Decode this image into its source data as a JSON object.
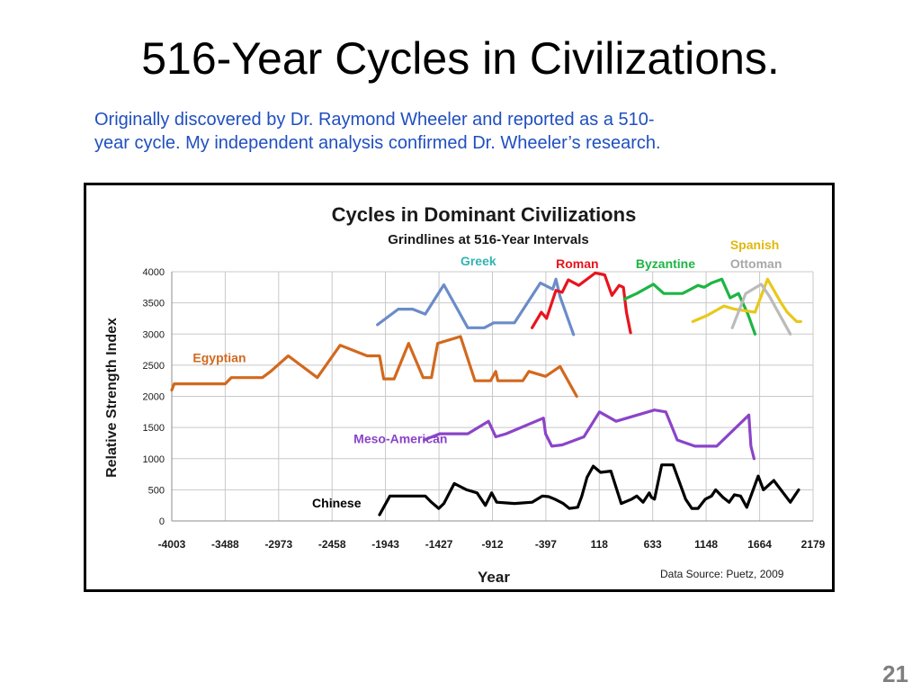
{
  "slide": {
    "title": "516-Year Cycles in Civilizations.",
    "subtitle_lines": [
      "Originally discovered by Dr. Raymond Wheeler and reported as a 510-",
      "year cycle.  My independent analysis confirmed Dr. Wheeler’s research."
    ],
    "page_number": "21"
  },
  "chart_data": {
    "type": "line",
    "title": "Cycles in Dominant Civilizations",
    "subtitle": "Grindlines at 516-Year Intervals",
    "xlabel": "Year",
    "ylabel": "Relative Strength Index",
    "source_note": "Data Source:  Puetz, 2009",
    "xlim": [
      -4003,
      2179
    ],
    "ylim": [
      0,
      4000
    ],
    "x_ticks": [
      -4003,
      -3488,
      -2973,
      -2458,
      -1943,
      -1427,
      -912,
      -397,
      118,
      633,
      1148,
      1664,
      2179
    ],
    "y_ticks": [
      0,
      500,
      1000,
      1500,
      2000,
      2500,
      3000,
      3500,
      4000
    ],
    "grid": true,
    "series": [
      {
        "name": "Egyptian",
        "color": "#d2691e",
        "x": [
          -4003,
          -3980,
          -3870,
          -3650,
          -3488,
          -3430,
          -3230,
          -3130,
          -3050,
          -2880,
          -2600,
          -2380,
          -2120,
          -2000,
          -1960,
          -1920,
          -1860,
          -1720,
          -1580,
          -1500,
          -1440,
          -1220,
          -1080,
          -930,
          -880,
          -860,
          -620,
          -560,
          -400,
          -260,
          -100
        ],
        "y": [
          2100,
          2200,
          2200,
          2200,
          2200,
          2300,
          2300,
          2300,
          2400,
          2650,
          2300,
          2820,
          2650,
          2650,
          2280,
          2280,
          2280,
          2850,
          2300,
          2300,
          2850,
          2960,
          2250,
          2250,
          2400,
          2250,
          2250,
          2400,
          2320,
          2480,
          2000
        ]
      },
      {
        "name": "Greek",
        "color": "#6b8cc8",
        "x": [
          -2020,
          -1820,
          -1680,
          -1560,
          -1380,
          -1150,
          -990,
          -900,
          -700,
          -450,
          -330,
          -300,
          -260,
          -130
        ],
        "y": [
          3150,
          3400,
          3400,
          3320,
          3790,
          3100,
          3100,
          3180,
          3180,
          3820,
          3720,
          3880,
          3600,
          2990
        ]
      },
      {
        "name": "Roman",
        "color": "#e8141d",
        "x": [
          -530,
          -440,
          -390,
          -300,
          -240,
          -180,
          -80,
          80,
          170,
          240,
          310,
          350,
          380,
          420
        ],
        "y": [
          3100,
          3350,
          3250,
          3700,
          3670,
          3870,
          3780,
          3980,
          3950,
          3620,
          3780,
          3750,
          3350,
          3020
        ]
      },
      {
        "name": "Byzantine",
        "color": "#1db544",
        "x": [
          360,
          480,
          640,
          740,
          920,
          1070,
          1130,
          1200,
          1300,
          1380,
          1460,
          1550,
          1620
        ],
        "y": [
          3560,
          3650,
          3800,
          3650,
          3650,
          3780,
          3750,
          3820,
          3880,
          3580,
          3650,
          3320,
          3000
        ]
      },
      {
        "name": "Spanish",
        "color": "#e8c81d",
        "x": [
          1020,
          1160,
          1320,
          1420,
          1620,
          1740,
          1870,
          1930,
          2020,
          2060
        ],
        "y": [
          3200,
          3300,
          3450,
          3400,
          3350,
          3880,
          3500,
          3350,
          3200,
          3200
        ]
      },
      {
        "name": "Ottoman",
        "color": "#bbbbbb",
        "x": [
          1400,
          1530,
          1680,
          1760,
          1860,
          1960
        ],
        "y": [
          3100,
          3650,
          3800,
          3600,
          3300,
          3000
        ]
      },
      {
        "name": "Meso-American",
        "color": "#8b44c8",
        "x": [
          -1570,
          -1420,
          -1150,
          -950,
          -880,
          -780,
          -420,
          -400,
          -340,
          -240,
          -30,
          120,
          280,
          650,
          760,
          870,
          1040,
          1250,
          1560,
          1580,
          1610
        ],
        "y": [
          1300,
          1400,
          1400,
          1600,
          1350,
          1400,
          1650,
          1400,
          1200,
          1220,
          1350,
          1750,
          1600,
          1780,
          1750,
          1300,
          1200,
          1200,
          1700,
          1200,
          1000
        ]
      },
      {
        "name": "Chinese",
        "color": "#000000",
        "x": [
          -2000,
          -1900,
          -1760,
          -1560,
          -1500,
          -1430,
          -1380,
          -1280,
          -1160,
          -1060,
          -980,
          -920,
          -870,
          -700,
          -530,
          -430,
          -370,
          -310,
          -230,
          -170,
          -90,
          -50,
          0,
          60,
          130,
          230,
          330,
          430,
          480,
          540,
          600,
          620,
          650,
          720,
          830,
          950,
          1010,
          1070,
          1140,
          1200,
          1240,
          1310,
          1370,
          1420,
          1480,
          1540,
          1650,
          1700,
          1800,
          1960,
          2040
        ],
        "y": [
          100,
          400,
          400,
          400,
          300,
          200,
          280,
          600,
          500,
          450,
          250,
          450,
          300,
          280,
          300,
          400,
          390,
          350,
          280,
          200,
          220,
          400,
          700,
          880,
          780,
          800,
          280,
          350,
          400,
          300,
          450,
          380,
          350,
          900,
          900,
          350,
          200,
          200,
          350,
          400,
          500,
          380,
          300,
          420,
          400,
          220,
          720,
          500,
          650,
          300,
          500
        ]
      }
    ],
    "series_labels": [
      {
        "name": "Egyptian",
        "color": "#d2691e",
        "x": -3800,
        "y": 2550
      },
      {
        "name": "Greek",
        "color": "#34b3b3",
        "x": -1220,
        "y": 4100
      },
      {
        "name": "Roman",
        "color": "#e8141d",
        "x": -300,
        "y": 4060
      },
      {
        "name": "Byzantine",
        "color": "#1db544",
        "x": 470,
        "y": 4060
      },
      {
        "name": "Spanish",
        "color": "#e0b80c",
        "x": 1380,
        "y": 4360
      },
      {
        "name": "Ottoman",
        "color": "#a8a8a8",
        "x": 1380,
        "y": 4060
      },
      {
        "name": "Meso-American",
        "color": "#8b44c8",
        "x": -2250,
        "y": 1250
      },
      {
        "name": "Chinese",
        "color": "#000000",
        "x": -2650,
        "y": 220
      }
    ]
  }
}
